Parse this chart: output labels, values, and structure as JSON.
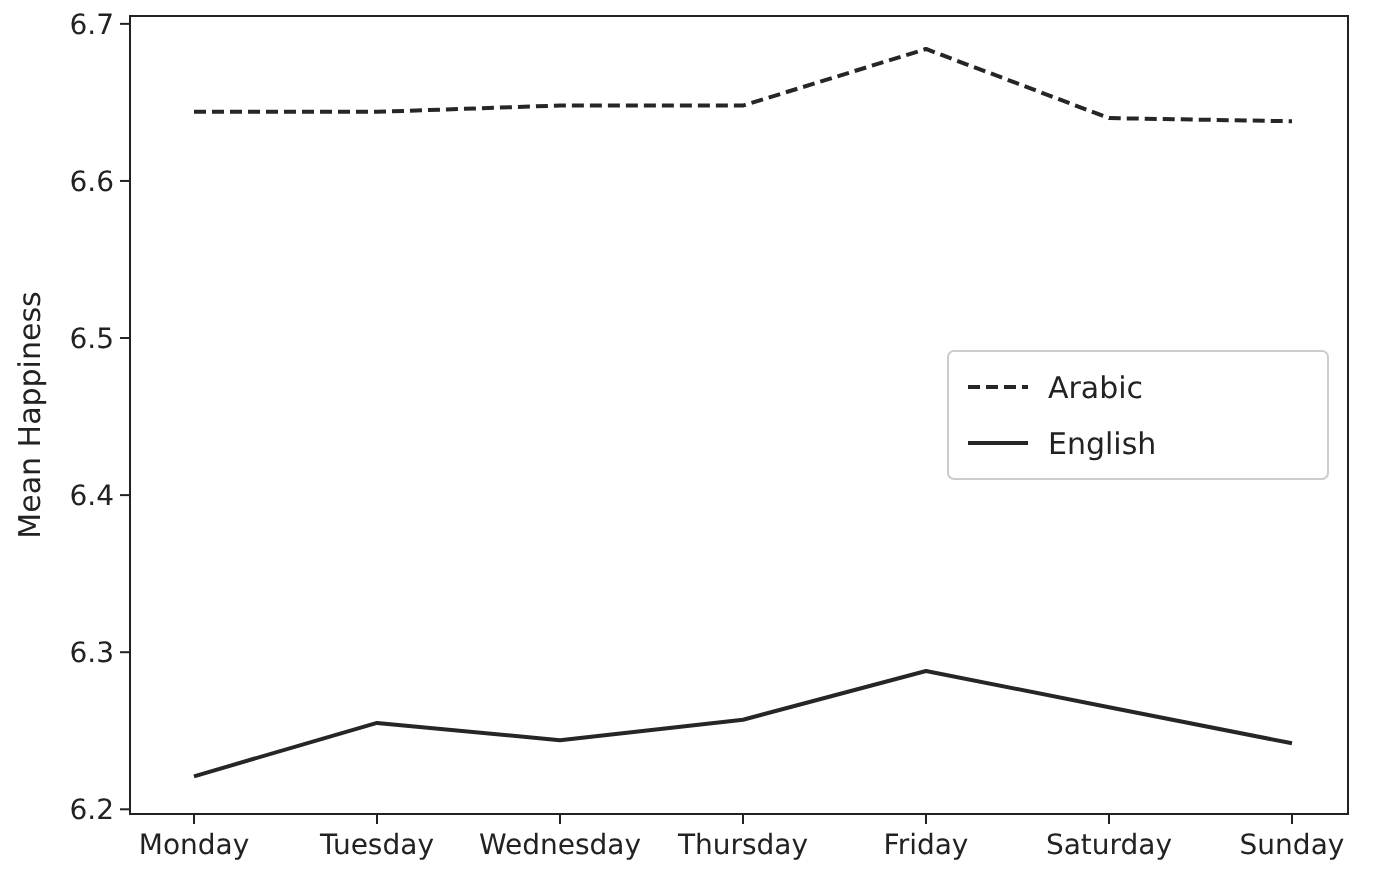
{
  "chart_data": {
    "type": "line",
    "ylabel": "Mean Happiness",
    "categories": [
      "Monday",
      "Tuesday",
      "Wednesday",
      "Thursday",
      "Friday",
      "Saturday",
      "Sunday"
    ],
    "series": [
      {
        "name": "Arabic",
        "color": "#262626",
        "line_style": "dashed",
        "values": [
          6.644,
          6.644,
          6.648,
          6.648,
          6.684,
          6.64,
          6.638
        ]
      },
      {
        "name": "English",
        "color": "#262626",
        "line_style": "solid",
        "values": [
          6.221,
          6.255,
          6.244,
          6.257,
          6.288,
          6.265,
          6.242
        ]
      }
    ],
    "ylim": [
      6.197,
      6.705
    ],
    "yticks": [
      6.2,
      6.3,
      6.4,
      6.5,
      6.6,
      6.7
    ],
    "legend": "right",
    "grid": false
  }
}
